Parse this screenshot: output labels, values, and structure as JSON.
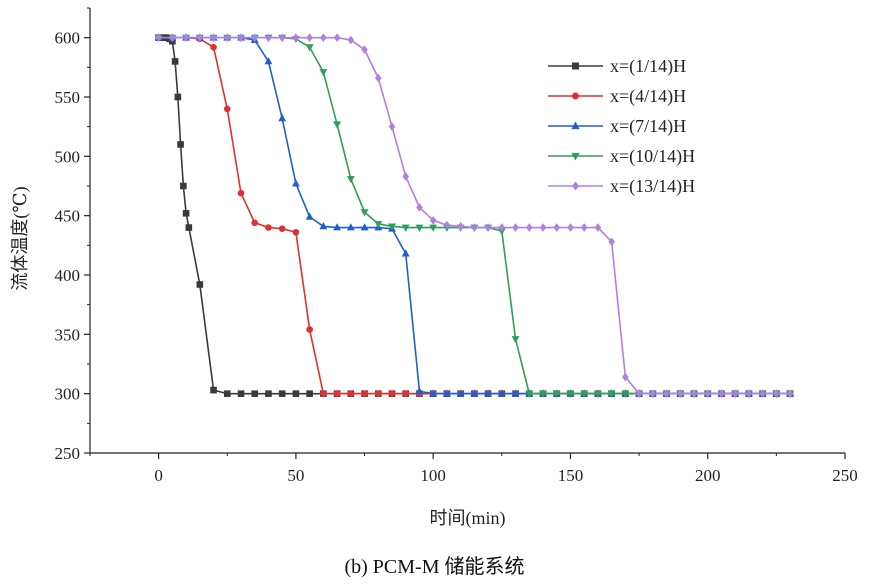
{
  "caption": "(b) PCM-M 储能系统",
  "chart_data": {
    "type": "line",
    "xlabel": "时间(min)",
    "ylabel": "流体温度(℃)",
    "xlim": [
      -25,
      250
    ],
    "ylim": [
      250,
      625
    ],
    "xticks": [
      0,
      50,
      100,
      150,
      200,
      250
    ],
    "yticks": [
      250,
      300,
      350,
      400,
      450,
      500,
      550,
      600
    ],
    "grid": false,
    "legend_position": "top-right",
    "series": [
      {
        "name": "x=(1/14)H",
        "color": "#3a3a3a",
        "marker": "square",
        "x": [
          0,
          1,
          2,
          3,
          4,
          5,
          6,
          7,
          8,
          9,
          10,
          11,
          15,
          20,
          25,
          30,
          35,
          40,
          45,
          50,
          55,
          60,
          65,
          70,
          75,
          80,
          85,
          90,
          95,
          100,
          105,
          110,
          115,
          120,
          125,
          130,
          135,
          140,
          145,
          150,
          155,
          160,
          165,
          170,
          175,
          180,
          185,
          190,
          195,
          200,
          205,
          210,
          215,
          220,
          225,
          230
        ],
        "y": [
          600,
          600,
          600,
          600,
          599,
          597,
          580,
          550,
          510,
          475,
          452,
          440,
          392,
          303,
          300,
          300,
          300,
          300,
          300,
          300,
          300,
          300,
          300,
          300,
          300,
          300,
          300,
          300,
          300,
          300,
          300,
          300,
          300,
          300,
          300,
          300,
          300,
          300,
          300,
          300,
          300,
          300,
          300,
          300,
          300,
          300,
          300,
          300,
          300,
          300,
          300,
          300,
          300,
          300,
          300,
          300
        ]
      },
      {
        "name": "x=(4/14)H",
        "color": "#e03030",
        "marker": "circle",
        "x": [
          0,
          5,
          10,
          15,
          20,
          25,
          30,
          35,
          40,
          45,
          50,
          55,
          60,
          65,
          70,
          75,
          80,
          85,
          90,
          95,
          100,
          105,
          110,
          115,
          120,
          125,
          130,
          135,
          140,
          145,
          150,
          155,
          160,
          165,
          170,
          175,
          180,
          185,
          190,
          195,
          200,
          205,
          210,
          215,
          220,
          225,
          230
        ],
        "y": [
          600,
          600,
          600,
          599,
          592,
          540,
          469,
          444,
          440,
          439,
          436,
          354,
          300,
          300,
          300,
          300,
          300,
          300,
          300,
          300,
          300,
          300,
          300,
          300,
          300,
          300,
          300,
          300,
          300,
          300,
          300,
          300,
          300,
          300,
          300,
          300,
          300,
          300,
          300,
          300,
          300,
          300,
          300,
          300,
          300,
          300,
          300
        ]
      },
      {
        "name": "x=(7/14)H",
        "color": "#1f5fd0",
        "marker": "triangle-up",
        "x": [
          0,
          5,
          10,
          15,
          20,
          25,
          30,
          35,
          40,
          45,
          50,
          55,
          60,
          65,
          70,
          75,
          80,
          85,
          90,
          95,
          100,
          105,
          110,
          115,
          120,
          125,
          130,
          135,
          140,
          145,
          150,
          155,
          160,
          165,
          170,
          175,
          180,
          185,
          190,
          195,
          200,
          205,
          210,
          215,
          220,
          225,
          230
        ],
        "y": [
          600,
          600,
          600,
          600,
          600,
          600,
          600,
          598,
          580,
          532,
          477,
          449,
          441,
          440,
          440,
          440,
          440,
          439,
          418,
          302,
          300,
          300,
          300,
          300,
          300,
          300,
          300,
          300,
          300,
          300,
          300,
          300,
          300,
          300,
          300,
          300,
          300,
          300,
          300,
          300,
          300,
          300,
          300,
          300,
          300,
          300,
          300
        ]
      },
      {
        "name": "x=(10/14)H",
        "color": "#2ea05a",
        "marker": "triangle-down",
        "x": [
          0,
          5,
          10,
          15,
          20,
          25,
          30,
          35,
          40,
          45,
          50,
          55,
          60,
          65,
          70,
          75,
          80,
          85,
          90,
          95,
          100,
          105,
          110,
          115,
          120,
          125,
          130,
          135,
          140,
          145,
          150,
          155,
          160,
          165,
          170,
          175,
          180,
          185,
          190,
          195,
          200,
          205,
          210,
          215,
          220,
          225,
          230
        ],
        "y": [
          600,
          600,
          600,
          600,
          600,
          600,
          600,
          600,
          600,
          600,
          599,
          592,
          571,
          527,
          481,
          453,
          443,
          441,
          440,
          440,
          440,
          440,
          440,
          440,
          440,
          437,
          346,
          300,
          300,
          300,
          300,
          300,
          300,
          300,
          300,
          300,
          300,
          300,
          300,
          300,
          300,
          300,
          300,
          300,
          300,
          300,
          300
        ]
      },
      {
        "name": "x=(13/14)H",
        "color": "#b080e0",
        "marker": "diamond",
        "x": [
          0,
          5,
          10,
          15,
          20,
          25,
          30,
          35,
          40,
          45,
          50,
          55,
          60,
          65,
          70,
          75,
          80,
          85,
          90,
          95,
          100,
          105,
          110,
          115,
          120,
          125,
          130,
          135,
          140,
          145,
          150,
          155,
          160,
          165,
          170,
          175,
          180,
          185,
          190,
          195,
          200,
          205,
          210,
          215,
          220,
          225,
          230
        ],
        "y": [
          600,
          600,
          600,
          600,
          600,
          600,
          600,
          600,
          600,
          600,
          600,
          600,
          600,
          600,
          598,
          590,
          566,
          525,
          483,
          457,
          446,
          442,
          441,
          440,
          440,
          440,
          440,
          440,
          440,
          440,
          440,
          440,
          440,
          428,
          314,
          300,
          300,
          300,
          300,
          300,
          300,
          300,
          300,
          300,
          300,
          300,
          300
        ]
      }
    ]
  }
}
